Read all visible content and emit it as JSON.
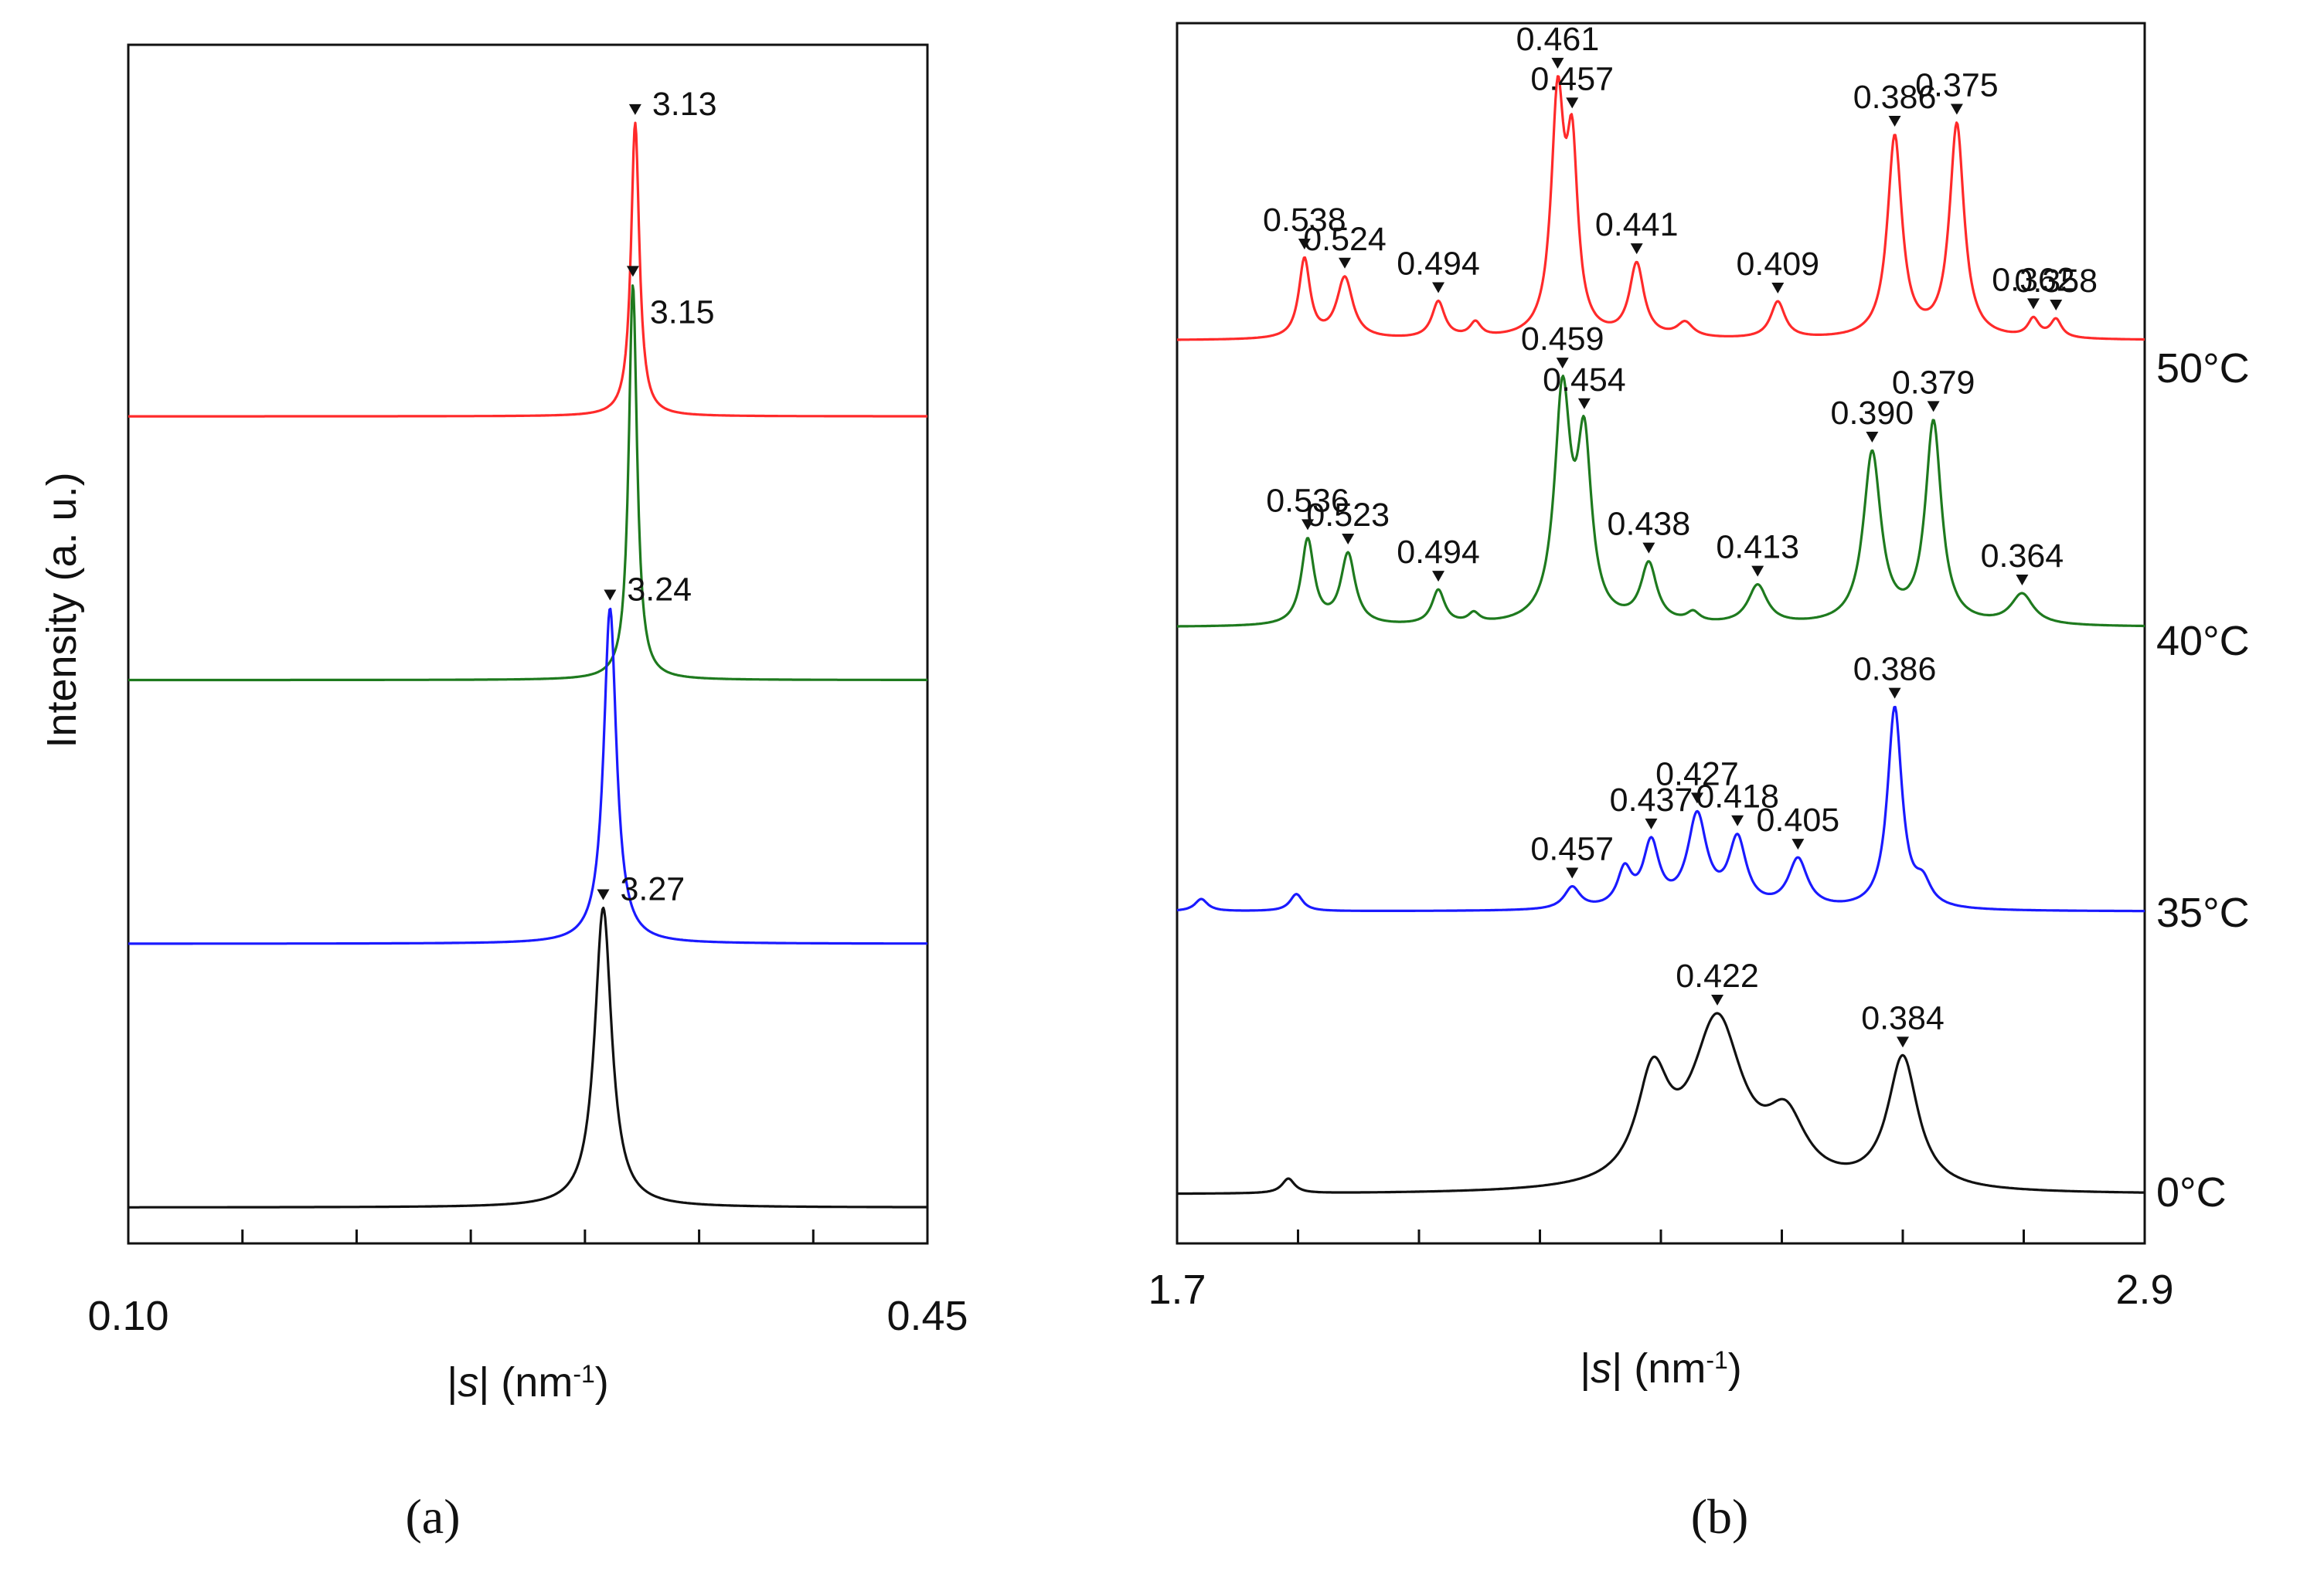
{
  "colors": {
    "red": "#ff2a2a",
    "green": "#1e7a1e",
    "blue": "#1a1aff",
    "black": "#111111"
  },
  "chart_data": [
    {
      "type": "line",
      "panel_label": "(a)",
      "ylabel": "Intensity (a. u.)",
      "xlabel": {
        "prefix": "|",
        "sym": "s",
        "mid": "| (nm",
        "sup": "-1",
        "suffix": ")"
      },
      "xlim": [
        0.1,
        0.45
      ],
      "x_tick_labels": [
        "0.10",
        "0.45"
      ],
      "minor_ticks": [
        0.15,
        0.2,
        0.25,
        0.3,
        0.35,
        0.4
      ],
      "series": [
        {
          "name": "50°C",
          "color": "#ff2a2a",
          "baseline": 0.69,
          "peaks": [
            {
              "x": 0.322,
              "h": 0.245,
              "w": 0.0022,
              "label": "3.13"
            }
          ]
        },
        {
          "name": "40°C",
          "color": "#1e7a1e",
          "baseline": 0.47,
          "peaks": [
            {
              "x": 0.321,
              "h": 0.33,
              "w": 0.0022,
              "label": "3.15"
            }
          ]
        },
        {
          "name": "35°C",
          "color": "#1a1aff",
          "baseline": 0.25,
          "peaks": [
            {
              "x": 0.311,
              "h": 0.28,
              "w": 0.0034,
              "label": "3.24"
            }
          ]
        },
        {
          "name": "0°C",
          "color": "#111111",
          "baseline": 0.03,
          "peaks": [
            {
              "x": 0.308,
              "h": 0.25,
              "w": 0.0045,
              "label": "3.27"
            }
          ]
        }
      ]
    },
    {
      "type": "line",
      "panel_label": "(b)",
      "xlabel": {
        "prefix": "|",
        "sym": "s",
        "mid": "| (nm",
        "sup": "-1",
        "suffix": ")"
      },
      "xlim": [
        1.7,
        2.9
      ],
      "x_tick_labels": [
        "1.7",
        "2.9"
      ],
      "minor_ticks": [
        1.85,
        2.0,
        2.15,
        2.3,
        2.45,
        2.6,
        2.75
      ],
      "series": [
        {
          "name": "50°C",
          "color": "#ff2a2a",
          "baseline": 0.74,
          "peaks": [
            {
              "x": 1.858,
              "h": 0.065,
              "w": 0.007,
              "label": "0.538"
            },
            {
              "x": 1.908,
              "h": 0.05,
              "w": 0.01,
              "label": "0.524"
            },
            {
              "x": 2.024,
              "h": 0.03,
              "w": 0.008,
              "label": "0.494"
            },
            {
              "x": 2.07,
              "h": 0.012,
              "w": 0.007,
              "label": ""
            },
            {
              "x": 2.172,
              "h": 0.19,
              "w": 0.008,
              "label": "0.461"
            },
            {
              "x": 2.19,
              "h": 0.14,
              "w": 0.007,
              "label": "0.457"
            },
            {
              "x": 2.27,
              "h": 0.06,
              "w": 0.009,
              "label": "0.441"
            },
            {
              "x": 2.33,
              "h": 0.012,
              "w": 0.01,
              "label": ""
            },
            {
              "x": 2.445,
              "h": 0.03,
              "w": 0.009,
              "label": "0.409"
            },
            {
              "x": 2.59,
              "h": 0.165,
              "w": 0.009,
              "label": "0.386"
            },
            {
              "x": 2.667,
              "h": 0.175,
              "w": 0.009,
              "label": "0.375"
            },
            {
              "x": 2.762,
              "h": 0.015,
              "w": 0.007,
              "label": "0.362"
            },
            {
              "x": 2.79,
              "h": 0.015,
              "w": 0.007,
              "label": "0.358"
            }
          ]
        },
        {
          "name": "40°C",
          "color": "#1e7a1e",
          "baseline": 0.505,
          "peaks": [
            {
              "x": 1.862,
              "h": 0.07,
              "w": 0.008,
              "label": "0.536"
            },
            {
              "x": 1.912,
              "h": 0.058,
              "w": 0.009,
              "label": "0.523"
            },
            {
              "x": 2.024,
              "h": 0.028,
              "w": 0.008,
              "label": "0.494"
            },
            {
              "x": 2.068,
              "h": 0.008,
              "w": 0.007,
              "label": ""
            },
            {
              "x": 2.178,
              "h": 0.185,
              "w": 0.01,
              "label": "0.459"
            },
            {
              "x": 2.205,
              "h": 0.14,
              "w": 0.009,
              "label": "0.454"
            },
            {
              "x": 2.285,
              "h": 0.048,
              "w": 0.01,
              "label": "0.438"
            },
            {
              "x": 2.34,
              "h": 0.008,
              "w": 0.008,
              "label": ""
            },
            {
              "x": 2.42,
              "h": 0.032,
              "w": 0.012,
              "label": "0.413"
            },
            {
              "x": 2.562,
              "h": 0.14,
              "w": 0.011,
              "label": "0.390"
            },
            {
              "x": 2.638,
              "h": 0.165,
              "w": 0.01,
              "label": "0.379"
            },
            {
              "x": 2.748,
              "h": 0.025,
              "w": 0.014,
              "label": "0.364"
            }
          ]
        },
        {
          "name": "35°C",
          "color": "#1a1aff",
          "baseline": 0.272,
          "peaks": [
            {
              "x": 1.73,
              "h": 0.01,
              "w": 0.008,
              "label": ""
            },
            {
              "x": 1.848,
              "h": 0.014,
              "w": 0.008,
              "label": ""
            },
            {
              "x": 2.19,
              "h": 0.018,
              "w": 0.01,
              "label": "0.457"
            },
            {
              "x": 2.255,
              "h": 0.03,
              "w": 0.009,
              "label": ""
            },
            {
              "x": 2.288,
              "h": 0.052,
              "w": 0.01,
              "label": "0.437"
            },
            {
              "x": 2.345,
              "h": 0.075,
              "w": 0.012,
              "label": "0.427"
            },
            {
              "x": 2.395,
              "h": 0.055,
              "w": 0.011,
              "label": "0.418"
            },
            {
              "x": 2.47,
              "h": 0.04,
              "w": 0.012,
              "label": "0.405"
            },
            {
              "x": 2.59,
              "h": 0.165,
              "w": 0.009,
              "label": "0.386"
            },
            {
              "x": 2.625,
              "h": 0.018,
              "w": 0.01,
              "label": ""
            }
          ]
        },
        {
          "name": "0°C",
          "color": "#111111",
          "baseline": 0.04,
          "peaks": [
            {
              "x": 1.838,
              "h": 0.012,
              "w": 0.008,
              "label": ""
            },
            {
              "x": 2.29,
              "h": 0.085,
              "w": 0.02,
              "label": ""
            },
            {
              "x": 2.37,
              "h": 0.135,
              "w": 0.032,
              "label": "0.422"
            },
            {
              "x": 2.455,
              "h": 0.05,
              "w": 0.025,
              "label": ""
            },
            {
              "x": 2.6,
              "h": 0.108,
              "w": 0.019,
              "label": "0.384"
            }
          ]
        }
      ],
      "temperature_labels": [
        "50°C",
        "40°C",
        "35°C",
        "0°C"
      ]
    }
  ]
}
